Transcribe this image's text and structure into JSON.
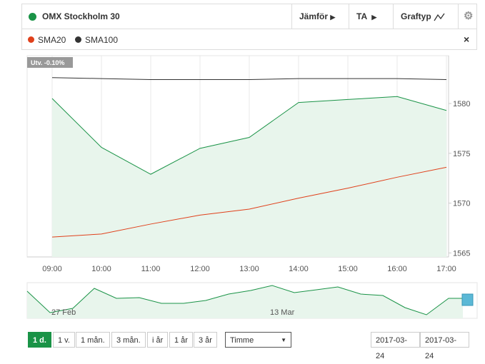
{
  "chart_data": {
    "type": "line",
    "categories": [
      "09:00",
      "10:00",
      "11:00",
      "12:00",
      "13:00",
      "14:00",
      "15:00",
      "16:00",
      "17:00"
    ],
    "series": [
      {
        "name": "OMX Stockholm 30",
        "color": "#1a9347",
        "values": [
          1580.5,
          1575.6,
          1572.9,
          1575.5,
          1576.6,
          1580.1,
          1580.4,
          1580.7,
          1579.3
        ]
      },
      {
        "name": "SMA20",
        "color": "#e0401b",
        "values": [
          1566.6,
          1566.9,
          1567.9,
          1568.8,
          1569.4,
          1570.5,
          1571.5,
          1572.6,
          1573.6
        ]
      },
      {
        "name": "SMA100",
        "color": "#333333",
        "values": [
          1582.6,
          1582.5,
          1582.4,
          1582.4,
          1582.4,
          1582.5,
          1582.5,
          1582.5,
          1582.4
        ]
      }
    ],
    "ylim": [
      1564.6,
      1584.8
    ],
    "yticks": [
      1565,
      1570,
      1575,
      1580
    ],
    "grid": true,
    "annotation": "Utv. -0.10%"
  },
  "toolbar": {
    "compare": "Jämför",
    "ta": "TA",
    "charttype": "Graftyp"
  },
  "navigator": {
    "labels": [
      "27 Feb",
      "13 Mar"
    ]
  },
  "periods": [
    "1 d.",
    "1 v.",
    "1 mån.",
    "3 mån.",
    "i år",
    "1 år",
    "3 år"
  ],
  "interval": "Timme",
  "dates": [
    "2017-03-24",
    "2017-03-24"
  ]
}
